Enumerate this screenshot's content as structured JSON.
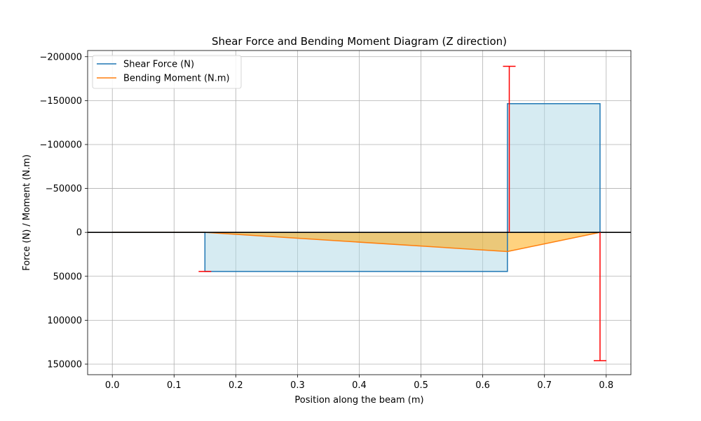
{
  "chart_data": {
    "type": "line",
    "title": "Shear Force and Bending Moment Diagram (Z direction)",
    "xlabel": "Position along the beam (m)",
    "ylabel": "Force (N) / Moment (N.m)",
    "xlim": [
      -0.04,
      0.84
    ],
    "ylim": [
      162000,
      -207000
    ],
    "y_inverted": true,
    "grid": true,
    "legend_position": "top-left",
    "x_ticks": [
      0.0,
      0.1,
      0.2,
      0.3,
      0.4,
      0.5,
      0.6,
      0.7,
      0.8
    ],
    "x_tick_labels": [
      "0.0",
      "0.1",
      "0.2",
      "0.3",
      "0.4",
      "0.5",
      "0.6",
      "0.7",
      "0.8"
    ],
    "y_ticks": [
      -200000,
      -150000,
      -100000,
      -50000,
      0,
      50000,
      100000,
      150000
    ],
    "y_tick_labels": [
      "−200000",
      "−150000",
      "−100000",
      "−50000",
      "0",
      "50000",
      "100000",
      "150000"
    ],
    "zero_line": {
      "y": 0,
      "color": "#000000"
    },
    "series": [
      {
        "name": "Shear Force (N)",
        "color": "#1f77b4",
        "fill_color": "#add8e6",
        "x": [
          0.0,
          0.15,
          0.15,
          0.64,
          0.64,
          0.79,
          0.79
        ],
        "y": [
          0,
          0,
          44500,
          44500,
          -146500,
          -146500,
          0
        ]
      },
      {
        "name": "Bending Moment (N.m)",
        "color": "#ff7f0e",
        "fill_color": "#ffa500",
        "x": [
          0.0,
          0.15,
          0.64,
          0.79
        ],
        "y": [
          0,
          0,
          21800,
          0
        ]
      }
    ],
    "reaction_forces": {
      "color": "#ff0000",
      "items": [
        {
          "x": 0.15,
          "y0": 44500,
          "y1": 44500
        },
        {
          "x": 0.643,
          "y0": 0,
          "y1": -189000
        },
        {
          "x": 0.79,
          "y0": 0,
          "y1": 146000
        }
      ]
    }
  }
}
